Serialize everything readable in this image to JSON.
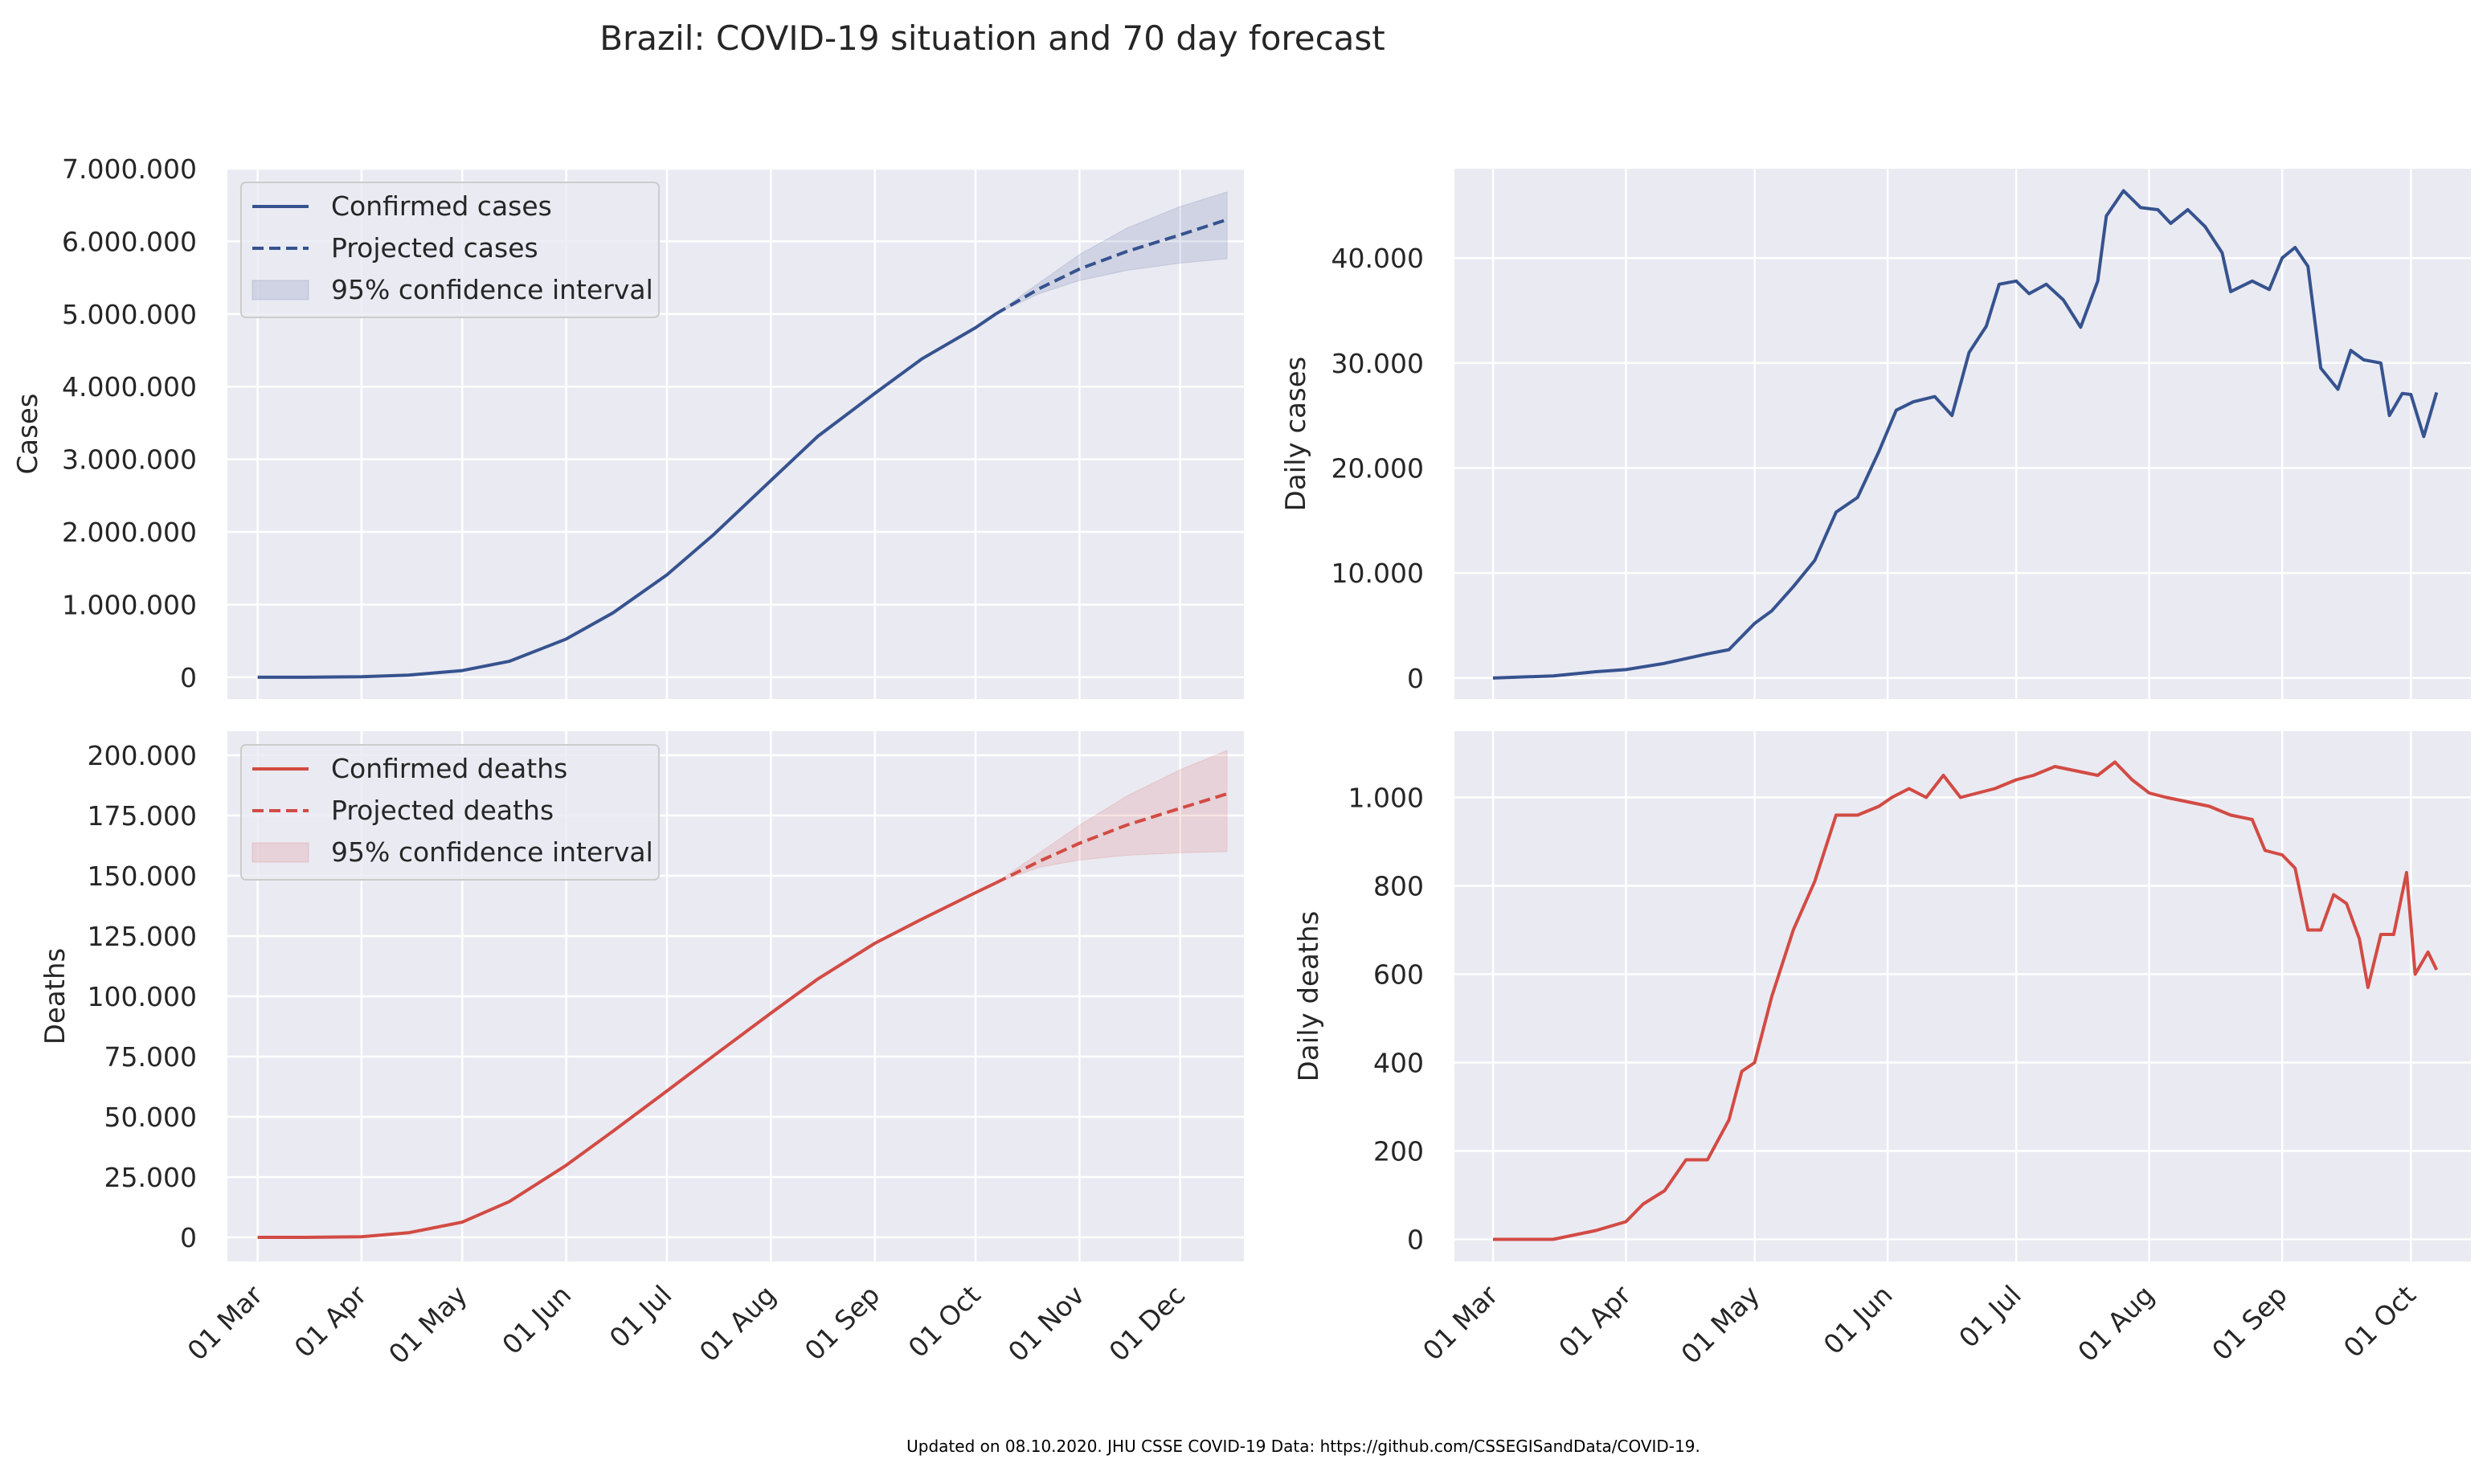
{
  "title": "Brazil: COVID-19 situation and 70 day forecast",
  "footer": "Updated on 08.10.2020. JHU CSSE COVID-19 Data: https://github.com/CSSEGISandData/COVID-19.",
  "colors": {
    "cases": "#36538f",
    "deaths": "#d24b44",
    "axes_bg": "#eaeaf2",
    "grid": "#ffffff",
    "text": "#262626"
  },
  "chart_data": [
    {
      "type": "line",
      "panel": "top-left",
      "ylabel": "Cases",
      "ylim": [
        -300000,
        7000000
      ],
      "yticks": [
        0,
        1000000,
        2000000,
        3000000,
        4000000,
        5000000,
        6000000,
        7000000
      ],
      "ytick_labels": [
        "0",
        "1.000.000",
        "2.000.000",
        "3.000.000",
        "4.000.000",
        "5.000.000",
        "6.000.000",
        "7.000.000"
      ],
      "xlim": [
        "2020-02-21",
        "2020-12-20"
      ],
      "xticks": [
        "2020-03-01",
        "2020-04-01",
        "2020-05-01",
        "2020-06-01",
        "2020-07-01",
        "2020-08-01",
        "2020-09-01",
        "2020-10-01",
        "2020-11-01",
        "2020-12-01"
      ],
      "xtick_labels": [],
      "legend_position": "top-left",
      "legend": [
        "Confirmed cases",
        "Projected cases",
        "95% confidence interval"
      ],
      "series": [
        {
          "name": "Confirmed cases",
          "style": "solid",
          "x": [
            "2020-03-01",
            "2020-03-15",
            "2020-04-01",
            "2020-04-15",
            "2020-05-01",
            "2020-05-15",
            "2020-06-01",
            "2020-06-15",
            "2020-07-01",
            "2020-07-15",
            "2020-08-01",
            "2020-08-15",
            "2020-09-01",
            "2020-09-15",
            "2020-10-01",
            "2020-10-07"
          ],
          "y": [
            2,
            200,
            6800,
            28300,
            91600,
            218200,
            526400,
            888300,
            1408500,
            1966700,
            2707900,
            3317100,
            3908300,
            4382300,
            4810900,
            5000700
          ]
        },
        {
          "name": "Projected cases",
          "style": "dashed",
          "x": [
            "2020-10-07",
            "2020-10-20",
            "2020-11-01",
            "2020-11-15",
            "2020-12-01",
            "2020-12-15"
          ],
          "y": [
            5000700,
            5350000,
            5620000,
            5860000,
            6090000,
            6300000
          ]
        }
      ],
      "band": {
        "name": "95% confidence interval",
        "x": [
          "2020-10-07",
          "2020-10-20",
          "2020-11-01",
          "2020-11-15",
          "2020-12-01",
          "2020-12-15"
        ],
        "lower": [
          5000700,
          5280000,
          5460000,
          5600000,
          5700000,
          5760000
        ],
        "upper": [
          5000700,
          5430000,
          5820000,
          6180000,
          6480000,
          6680000
        ]
      }
    },
    {
      "type": "line",
      "panel": "top-right",
      "ylabel": "Daily cases",
      "ylim": [
        -2000,
        48500
      ],
      "yticks": [
        0,
        10000,
        20000,
        30000,
        40000
      ],
      "ytick_labels": [
        "0",
        "10.000",
        "20.000",
        "30.000",
        "40.000"
      ],
      "xlim": [
        "2020-02-21",
        "2020-10-15"
      ],
      "xticks": [
        "2020-03-01",
        "2020-04-01",
        "2020-05-01",
        "2020-06-01",
        "2020-07-01",
        "2020-08-01",
        "2020-09-01",
        "2020-10-01"
      ],
      "xtick_labels": [],
      "series": [
        {
          "name": "Daily cases",
          "style": "solid",
          "x": [
            "2020-03-01",
            "2020-03-15",
            "2020-03-25",
            "2020-04-01",
            "2020-04-10",
            "2020-04-20",
            "2020-04-25",
            "2020-05-01",
            "2020-05-05",
            "2020-05-10",
            "2020-05-15",
            "2020-05-20",
            "2020-05-25",
            "2020-05-30",
            "2020-06-03",
            "2020-06-07",
            "2020-06-12",
            "2020-06-16",
            "2020-06-20",
            "2020-06-24",
            "2020-06-27",
            "2020-07-01",
            "2020-07-04",
            "2020-07-08",
            "2020-07-12",
            "2020-07-16",
            "2020-07-20",
            "2020-07-22",
            "2020-07-26",
            "2020-07-30",
            "2020-08-03",
            "2020-08-06",
            "2020-08-10",
            "2020-08-14",
            "2020-08-18",
            "2020-08-20",
            "2020-08-25",
            "2020-08-29",
            "2020-09-01",
            "2020-09-04",
            "2020-09-07",
            "2020-09-10",
            "2020-09-14",
            "2020-09-17",
            "2020-09-20",
            "2020-09-24",
            "2020-09-26",
            "2020-09-29",
            "2020-10-01",
            "2020-10-04",
            "2020-10-07"
          ],
          "y": [
            0,
            200,
            600,
            800,
            1400,
            2300,
            2700,
            5200,
            6400,
            8700,
            11200,
            15800,
            17200,
            21600,
            25500,
            26300,
            26800,
            25000,
            31000,
            33500,
            37500,
            37800,
            36600,
            37500,
            36000,
            33400,
            37800,
            44000,
            46400,
            44800,
            44600,
            43300,
            44600,
            43000,
            40500,
            36800,
            37800,
            37000,
            40000,
            41000,
            39200,
            29500,
            27500,
            31200,
            30300,
            30000,
            25000,
            27100,
            27000,
            23000,
            27200
          ]
        }
      ]
    },
    {
      "type": "line",
      "panel": "bottom-left",
      "ylabel": "Deaths",
      "ylim": [
        -10000,
        210000
      ],
      "yticks": [
        0,
        25000,
        50000,
        75000,
        100000,
        125000,
        150000,
        175000,
        200000
      ],
      "ytick_labels": [
        "0",
        "25.000",
        "50.000",
        "75.000",
        "100.000",
        "125.000",
        "150.000",
        "175.000",
        "200.000"
      ],
      "xlim": [
        "2020-02-21",
        "2020-12-20"
      ],
      "xticks": [
        "2020-03-01",
        "2020-04-01",
        "2020-05-01",
        "2020-06-01",
        "2020-07-01",
        "2020-08-01",
        "2020-09-01",
        "2020-10-01",
        "2020-11-01",
        "2020-12-01"
      ],
      "xtick_labels": [
        "01 Mar",
        "01 Apr",
        "01 May",
        "01 Jun",
        "01 Jul",
        "01 Aug",
        "01 Sep",
        "01 Oct",
        "01 Nov",
        "01 Dec"
      ],
      "legend_position": "top-left",
      "legend": [
        "Confirmed deaths",
        "Projected deaths",
        "95% confidence interval"
      ],
      "series": [
        {
          "name": "Confirmed deaths",
          "style": "solid",
          "x": [
            "2020-03-01",
            "2020-03-15",
            "2020-04-01",
            "2020-04-15",
            "2020-05-01",
            "2020-05-15",
            "2020-06-01",
            "2020-06-15",
            "2020-07-01",
            "2020-07-15",
            "2020-08-01",
            "2020-08-15",
            "2020-09-01",
            "2020-09-15",
            "2020-10-01",
            "2020-10-07"
          ],
          "y": [
            0,
            0,
            240,
            1900,
            6300,
            14800,
            29900,
            44100,
            60700,
            75400,
            93000,
            107200,
            122000,
            132000,
            143000,
            147000
          ]
        },
        {
          "name": "Projected deaths",
          "style": "dashed",
          "x": [
            "2020-10-07",
            "2020-10-20",
            "2020-11-01",
            "2020-11-15",
            "2020-12-01",
            "2020-12-15"
          ],
          "y": [
            147000,
            156000,
            163500,
            171000,
            178000,
            184000
          ]
        }
      ],
      "band": {
        "name": "95% confidence interval",
        "x": [
          "2020-10-07",
          "2020-10-20",
          "2020-11-01",
          "2020-11-15",
          "2020-12-01",
          "2020-12-15"
        ],
        "lower": [
          147000,
          153500,
          156500,
          158500,
          159500,
          160000
        ],
        "upper": [
          147000,
          159500,
          171000,
          183000,
          194000,
          202000
        ]
      }
    },
    {
      "type": "line",
      "panel": "bottom-right",
      "ylabel": "Daily deaths",
      "ylim": [
        -50,
        1150
      ],
      "yticks": [
        0,
        200,
        400,
        600,
        800,
        1000
      ],
      "ytick_labels": [
        "0",
        "200",
        "400",
        "600",
        "800",
        "1.000"
      ],
      "xlim": [
        "2020-02-21",
        "2020-10-15"
      ],
      "xticks": [
        "2020-03-01",
        "2020-04-01",
        "2020-05-01",
        "2020-06-01",
        "2020-07-01",
        "2020-08-01",
        "2020-09-01",
        "2020-10-01"
      ],
      "xtick_labels": [
        "01 Mar",
        "01 Apr",
        "01 May",
        "01 Jun",
        "01 Jul",
        "01 Aug",
        "01 Sep",
        "01 Oct"
      ],
      "series": [
        {
          "name": "Daily deaths",
          "style": "solid",
          "x": [
            "2020-03-01",
            "2020-03-15",
            "2020-03-25",
            "2020-04-01",
            "2020-04-05",
            "2020-04-10",
            "2020-04-15",
            "2020-04-20",
            "2020-04-25",
            "2020-04-28",
            "2020-05-01",
            "2020-05-05",
            "2020-05-10",
            "2020-05-15",
            "2020-05-20",
            "2020-05-25",
            "2020-05-30",
            "2020-06-02",
            "2020-06-06",
            "2020-06-10",
            "2020-06-14",
            "2020-06-18",
            "2020-06-22",
            "2020-06-26",
            "2020-07-01",
            "2020-07-05",
            "2020-07-10",
            "2020-07-15",
            "2020-07-20",
            "2020-07-24",
            "2020-07-28",
            "2020-08-01",
            "2020-08-05",
            "2020-08-10",
            "2020-08-15",
            "2020-08-20",
            "2020-08-25",
            "2020-08-28",
            "2020-09-01",
            "2020-09-04",
            "2020-09-07",
            "2020-09-10",
            "2020-09-13",
            "2020-09-16",
            "2020-09-19",
            "2020-09-21",
            "2020-09-24",
            "2020-09-27",
            "2020-09-30",
            "2020-10-02",
            "2020-10-05",
            "2020-10-07"
          ],
          "y": [
            0,
            0,
            20,
            40,
            80,
            110,
            180,
            180,
            270,
            380,
            400,
            550,
            700,
            810,
            960,
            960,
            980,
            1000,
            1020,
            1000,
            1050,
            1000,
            1010,
            1020,
            1040,
            1050,
            1070,
            1060,
            1050,
            1080,
            1040,
            1010,
            1000,
            990,
            980,
            960,
            950,
            880,
            870,
            840,
            700,
            700,
            780,
            760,
            680,
            570,
            690,
            690,
            830,
            600,
            650,
            610
          ]
        }
      ]
    }
  ]
}
